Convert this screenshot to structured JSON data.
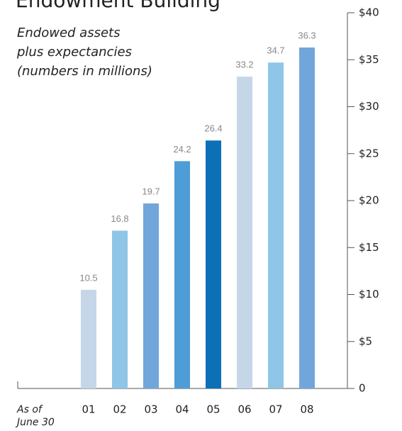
{
  "chart_data": {
    "type": "bar",
    "title": "Endowment Building",
    "subtitle": [
      "Endowed assets",
      "plus expectancies",
      "(numbers in millions)"
    ],
    "xlabel": [
      "As of",
      "June 30"
    ],
    "categories": [
      "01",
      "02",
      "03",
      "04",
      "05",
      "06",
      "07",
      "08"
    ],
    "values": [
      10.5,
      16.8,
      19.7,
      24.2,
      26.4,
      33.2,
      34.7,
      36.3
    ],
    "colors": [
      "#c6d6e9",
      "#8fc5e7",
      "#71a6da",
      "#4f9dd6",
      "#0d70b6",
      "#c6d6e9",
      "#8fc5e7",
      "#71a6da"
    ],
    "ylim": [
      0,
      40
    ],
    "yticks": [
      0,
      {
        "value": 5,
        "label": "$5"
      },
      {
        "value": 10,
        "label": "$10"
      },
      {
        "value": 15,
        "label": "$15"
      },
      {
        "value": 20,
        "label": "$20"
      },
      {
        "value": 25,
        "label": "$25"
      },
      {
        "value": 30,
        "label": "$30"
      },
      {
        "value": 35,
        "label": "$35"
      },
      {
        "value": 40,
        "label": "$40"
      }
    ],
    "grid": false
  }
}
